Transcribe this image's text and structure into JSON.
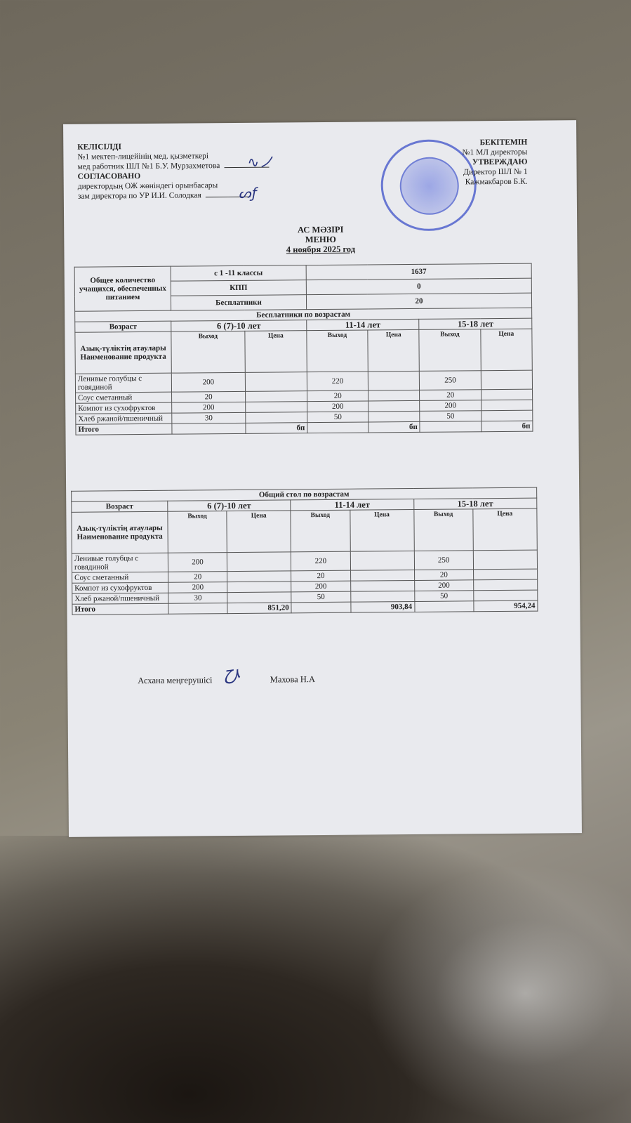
{
  "left_header": {
    "agreed_kz": "КЕЛІСІЛДІ",
    "line1": "№1 мектеп-лицейінің мед. қызметкері",
    "line2": "мед работник ШЛ №1 Б.У. Мурзахметова",
    "agreed_ru": "СОГЛАСОВАНО",
    "line3": "директордың ОЖ жөніндегі орынбасары",
    "line4": "зам директора по УР И.И. Солодкая"
  },
  "right_header": {
    "approve_kz": "БЕКІТЕМІН",
    "line1": "№1 МЛ директоры",
    "approve_ru": "УТВЕРЖДАЮ",
    "line2": "Директор ШЛ № 1",
    "line3": "Кажмакбаров Б.К."
  },
  "title": {
    "kz": "АС МӘЗІРІ",
    "ru": "МЕНЮ",
    "date": "4 ноября 2025 год"
  },
  "summary": {
    "label": "Общее количество учащихся, обеспеченных питанием",
    "rows": [
      {
        "name": "с 1 -11 классы",
        "value": "1637"
      },
      {
        "name": "КПП",
        "value": "0"
      },
      {
        "name": "Бесплатники",
        "value": "20"
      }
    ]
  },
  "table_free": {
    "caption": "Бесплатники по возрастам",
    "age_label": "Возраст",
    "ages": [
      "6 (7)-10 лет",
      "11-14 лет",
      "15-18 лет"
    ],
    "product_label": "Азық-түліктің атаулары Наименование продукта",
    "sub": [
      "Выход",
      "Цена",
      "Выход",
      "Цена",
      "Выход",
      "Цена"
    ],
    "rows": [
      [
        "Ленивые голубцы с говядиной",
        "200",
        "",
        "220",
        "",
        "250",
        ""
      ],
      [
        "Соус сметанный",
        "20",
        "",
        "20",
        "",
        "20",
        ""
      ],
      [
        "Компот из сухофруктов",
        "200",
        "",
        "200",
        "",
        "200",
        ""
      ],
      [
        "Хлеб ржаной/пшеничный",
        "30",
        "",
        "50",
        "",
        "50",
        ""
      ]
    ],
    "total_label": "Итого",
    "totals": [
      "бп",
      "бп",
      "бп"
    ]
  },
  "table_general": {
    "caption": "Общий стол по возрастам",
    "age_label": "Возраст",
    "ages": [
      "6 (7)-10 лет",
      "11-14 лет",
      "15-18 лет"
    ],
    "product_label": "Азық-түліктің атаулары Наименование продукта",
    "sub": [
      "Выход",
      "Цена",
      "Выход",
      "Цена",
      "Выход",
      "Цена"
    ],
    "rows": [
      [
        "Ленивые голубцы с говядиной",
        "200",
        "",
        "220",
        "",
        "250",
        ""
      ],
      [
        "Соус сметанный",
        "20",
        "",
        "20",
        "",
        "20",
        ""
      ],
      [
        "Компот из сухофруктов",
        "200",
        "",
        "200",
        "",
        "200",
        ""
      ],
      [
        "Хлеб ржаной/пшеничный",
        "30",
        "",
        "50",
        "",
        "50",
        ""
      ]
    ],
    "total_label": "Итого",
    "totals": [
      "851,20",
      "903,84",
      "954,24"
    ]
  },
  "footer": {
    "role": "Асхана меңгерушісі",
    "name": "Махова Н.А"
  },
  "colors": {
    "ink": "#222222",
    "stamp": "#3c50c8",
    "signature": "#2a3580",
    "paper": "#e9eaee"
  }
}
